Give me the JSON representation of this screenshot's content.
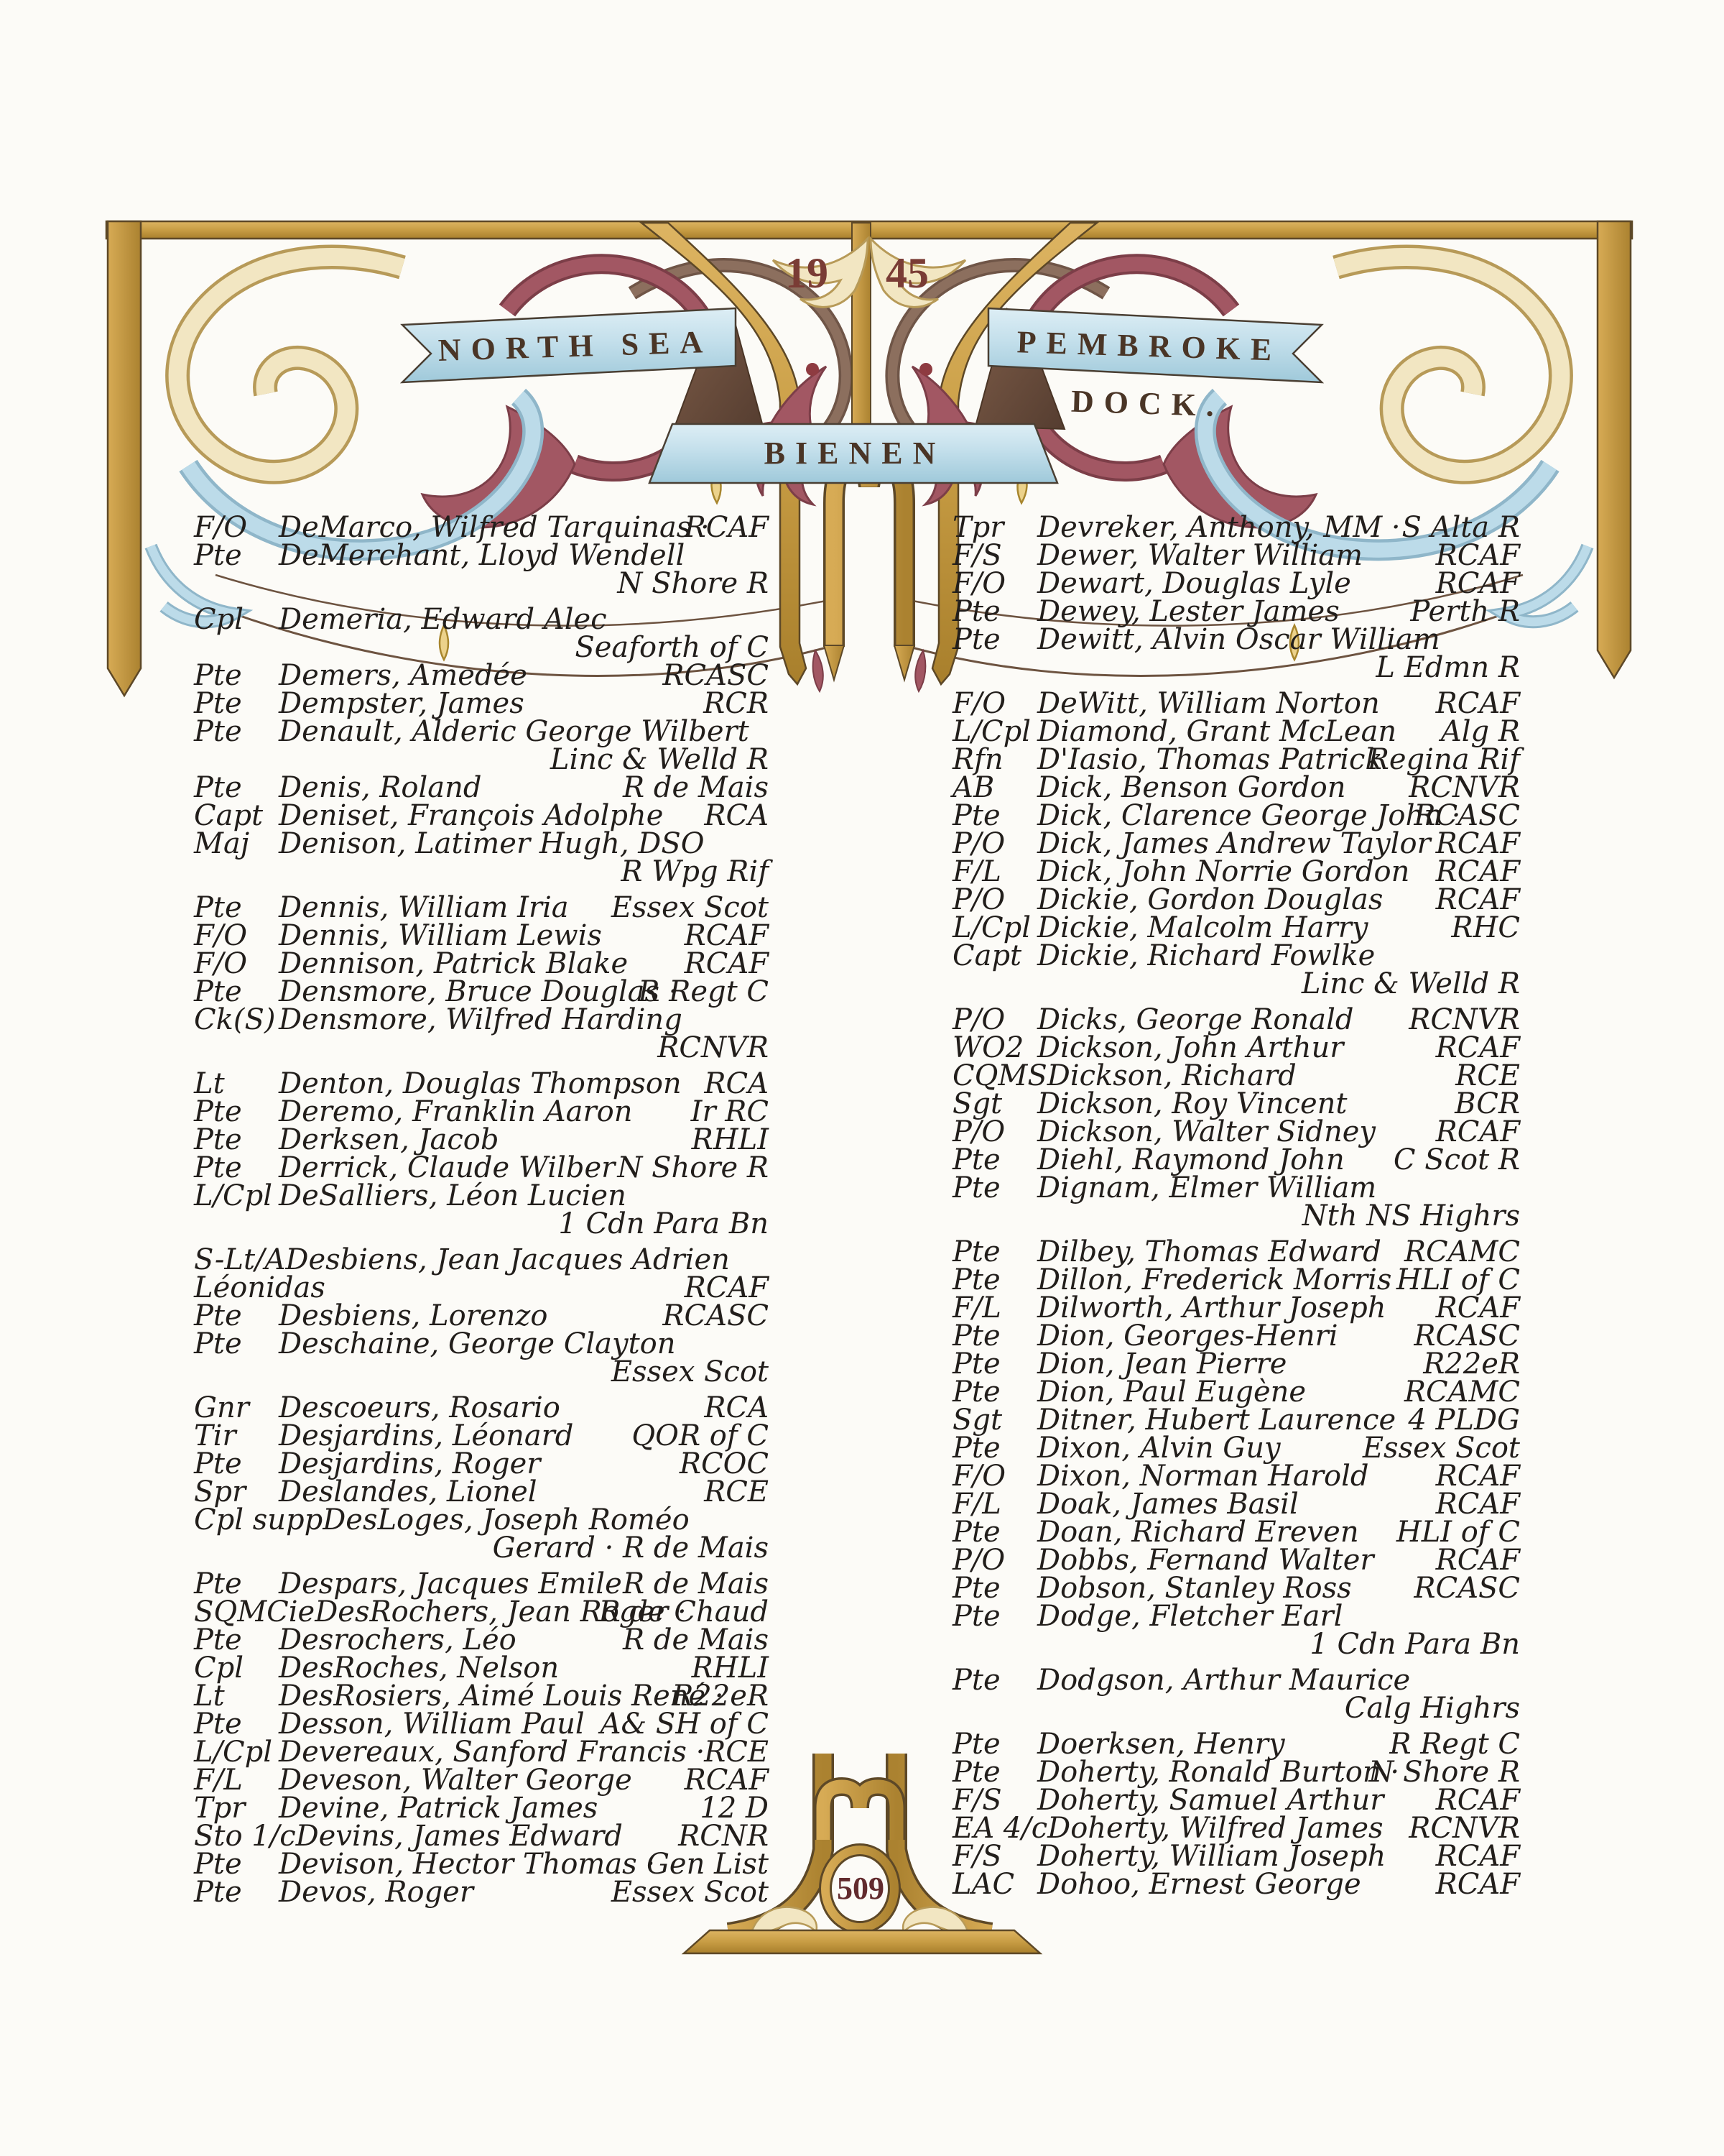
{
  "header": {
    "year_left": "19",
    "year_right": "45",
    "banner_left": "NORTH SEA",
    "banner_right": "PEMBROKE DOCK.",
    "banner_center": "BIENEN"
  },
  "footer": {
    "page_number": "509"
  },
  "colors": {
    "paper": "#fcfbf7",
    "gold": "#c89d44",
    "gold_dark": "#a87f2c",
    "outline_brown": "#5d4827",
    "banner_blue": "#c3dfeb",
    "ribbon_fold_brown": "#6b4c3c",
    "foliage_red": "#a25763",
    "foliage_red_dark": "#7c3e48",
    "foliage_blue": "#bcdbe9",
    "foliage_cream": "#f2e6c2",
    "foliage_brown": "#8c6f5e",
    "ink": "#221e1b",
    "numeral_red": "#7a3c35",
    "page_number_red": "#622b2e",
    "banner_text_brown": "#4a3526"
  },
  "register": {
    "left_column": {
      "rows": [
        {
          "rank": "F/O",
          "name": "DeMarco, Wilfred Tarquinas ·",
          "reg": "RCAF"
        },
        {
          "rank": "Pte",
          "name": "DeMerchant, Lloyd Wendell",
          "reg": ""
        },
        {
          "cont": true,
          "reg": "N Shore R"
        },
        {
          "rank": "Cpl",
          "name": "Demeria, Edward Alec",
          "reg": "",
          "gap": true
        },
        {
          "cont": true,
          "reg": "Seaforth of C"
        },
        {
          "rank": "Pte",
          "name": "Demers, Amedée",
          "reg": "RCASC"
        },
        {
          "rank": "Pte",
          "name": "Dempster, James",
          "reg": "RCR"
        },
        {
          "rank": "Pte",
          "name": "Denault, Alderic George Wilbert",
          "reg": ""
        },
        {
          "cont": true,
          "reg": "Linc & Welld R"
        },
        {
          "rank": "Pte",
          "name": "Denis, Roland",
          "reg": "R de Mais"
        },
        {
          "rank": "Capt",
          "name": "Deniset, François Adolphe",
          "reg": "RCA"
        },
        {
          "rank": "Maj",
          "name": "Denison, Latimer Hugh, DSO",
          "reg": ""
        },
        {
          "cont": true,
          "reg": "R Wpg Rif"
        },
        {
          "rank": "Pte",
          "name": "Dennis, William Iria",
          "reg": "Essex Scot",
          "gap": true
        },
        {
          "rank": "F/O",
          "name": "Dennis, William Lewis",
          "reg": "RCAF"
        },
        {
          "rank": "F/O",
          "name": "Dennison, Patrick Blake",
          "reg": "RCAF"
        },
        {
          "rank": "Pte",
          "name": "Densmore, Bruce Douglas ·",
          "reg": "R Regt C"
        },
        {
          "rank": "Ck(S)",
          "name": "Densmore, Wilfred Harding",
          "reg": ""
        },
        {
          "cont": true,
          "reg": "RCNVR"
        },
        {
          "rank": "Lt",
          "name": "Denton, Douglas Thompson",
          "reg": "RCA",
          "gap": true
        },
        {
          "rank": "Pte",
          "name": "Deremo, Franklin Aaron",
          "reg": "Ir RC"
        },
        {
          "rank": "Pte",
          "name": "Derksen, Jacob",
          "reg": "RHLI"
        },
        {
          "rank": "Pte",
          "name": "Derrick, Claude Wilber",
          "reg": "N Shore R"
        },
        {
          "rank": "L/Cpl",
          "name": "DeSalliers, Léon Lucien",
          "reg": ""
        },
        {
          "cont": true,
          "reg": "1 Cdn Para Bn"
        },
        {
          "rank": "S-Lt/A",
          "name": "Desbiens, Jean Jacques Adrien",
          "reg": "",
          "gap": true
        },
        {
          "cont": true,
          "pre": "Léonidas",
          "reg": "RCAF"
        },
        {
          "rank": "Pte",
          "name": "Desbiens, Lorenzo",
          "reg": "RCASC"
        },
        {
          "rank": "Pte",
          "name": "Deschaine, George Clayton",
          "reg": ""
        },
        {
          "cont": true,
          "reg": "Essex Scot"
        },
        {
          "rank": "Gnr",
          "name": "Descoeurs, Rosario",
          "reg": "RCA",
          "gap": true
        },
        {
          "rank": "Tir",
          "name": "Desjardins, Léonard",
          "reg": "QOR of C"
        },
        {
          "rank": "Pte",
          "name": "Desjardins, Roger",
          "reg": "RCOC"
        },
        {
          "rank": "Spr",
          "name": "Deslandes, Lionel",
          "reg": "RCE"
        },
        {
          "rank": "Cpl supp",
          "name": "DesLoges, Joseph Roméo",
          "reg": ""
        },
        {
          "cont": true,
          "reg": "Gerard · R de Mais"
        },
        {
          "rank": "Pte",
          "name": "Despars, Jacques Emile",
          "reg": "R de Mais",
          "gap": true
        },
        {
          "rank": "SQMCie",
          "name": "DesRochers, Jean Roger ·",
          "reg": "R de Chaud"
        },
        {
          "rank": "Pte",
          "name": "Desrochers, Léo",
          "reg": "R de Mais"
        },
        {
          "rank": "Cpl",
          "name": "DesRoches, Nelson",
          "reg": "RHLI"
        },
        {
          "rank": "Lt",
          "name": "DesRosiers, Aimé Louis René ·",
          "reg": "R22eR"
        },
        {
          "rank": "Pte",
          "name": "Desson, William Paul",
          "reg": "A& SH of C"
        },
        {
          "rank": "L/Cpl",
          "name": "Devereaux, Sanford Francis ·",
          "reg": "RCE"
        },
        {
          "rank": "F/L",
          "name": "Deveson, Walter George",
          "reg": "RCAF"
        },
        {
          "rank": "Tpr",
          "name": "Devine, Patrick James",
          "reg": "12 D"
        },
        {
          "rank": "Sto 1/c",
          "name": "Devins, James Edward",
          "reg": "RCNR"
        },
        {
          "rank": "Pte",
          "name": "Devison, Hector Thomas ·",
          "reg": "Gen List"
        },
        {
          "rank": "Pte",
          "name": "Devos, Roger",
          "reg": "Essex Scot"
        }
      ]
    },
    "right_column": {
      "rows": [
        {
          "rank": "Tpr",
          "name": "Devreker, Anthony, MM ·",
          "reg": "S Alta R"
        },
        {
          "rank": "F/S",
          "name": "Dewer, Walter William",
          "reg": "RCAF"
        },
        {
          "rank": "F/O",
          "name": "Dewart, Douglas Lyle",
          "reg": "RCAF"
        },
        {
          "rank": "Pte",
          "name": "Dewey, Lester James",
          "reg": "Perth R"
        },
        {
          "rank": "Pte",
          "name": "Dewitt, Alvin Oscar William",
          "reg": ""
        },
        {
          "cont": true,
          "reg": "L Edmn R"
        },
        {
          "rank": "F/O",
          "name": "DeWitt, William Norton",
          "reg": "RCAF",
          "gap": true
        },
        {
          "rank": "L/Cpl",
          "name": "Diamond, Grant McLean",
          "reg": "Alg R"
        },
        {
          "rank": "Rfn",
          "name": "D'Iasio, Thomas Patrick",
          "reg": "Regina Rif"
        },
        {
          "rank": "AB",
          "name": "Dick, Benson Gordon",
          "reg": "RCNVR"
        },
        {
          "rank": "Pte",
          "name": "Dick, Clarence George John ·",
          "reg": "RCASC"
        },
        {
          "rank": "P/O",
          "name": "Dick, James Andrew Taylor",
          "reg": "RCAF"
        },
        {
          "rank": "F/L",
          "name": "Dick, John Norrie Gordon",
          "reg": "RCAF"
        },
        {
          "rank": "P/O",
          "name": "Dickie, Gordon Douglas",
          "reg": "RCAF"
        },
        {
          "rank": "L/Cpl",
          "name": "Dickie, Malcolm Harry",
          "reg": "RHC"
        },
        {
          "rank": "Capt",
          "name": "Dickie, Richard Fowlke",
          "reg": ""
        },
        {
          "cont": true,
          "reg": "Linc & Welld R"
        },
        {
          "rank": "P/O",
          "name": "Dicks, George Ronald",
          "reg": "RCNVR",
          "gap": true
        },
        {
          "rank": "WO2",
          "name": "Dickson, John Arthur",
          "reg": "RCAF"
        },
        {
          "rank": "CQMS",
          "name": "Dickson, Richard",
          "reg": "RCE"
        },
        {
          "rank": "Sgt",
          "name": "Dickson, Roy Vincent",
          "reg": "BCR"
        },
        {
          "rank": "P/O",
          "name": "Dickson, Walter Sidney",
          "reg": "RCAF"
        },
        {
          "rank": "Pte",
          "name": "Diehl, Raymond John",
          "reg": "C Scot R"
        },
        {
          "rank": "Pte",
          "name": "Dignam, Elmer William",
          "reg": ""
        },
        {
          "cont": true,
          "reg": "Nth NS Highrs"
        },
        {
          "rank": "Pte",
          "name": "Dilbey, Thomas Edward",
          "reg": "RCAMC",
          "gap": true
        },
        {
          "rank": "Pte",
          "name": "Dillon, Frederick Morris",
          "reg": "HLI of C"
        },
        {
          "rank": "F/L",
          "name": "Dilworth, Arthur Joseph",
          "reg": "RCAF"
        },
        {
          "rank": "Pte",
          "name": "Dion, Georges-Henri",
          "reg": "RCASC"
        },
        {
          "rank": "Pte",
          "name": "Dion, Jean Pierre",
          "reg": "R22eR"
        },
        {
          "rank": "Pte",
          "name": "Dion, Paul Eugène",
          "reg": "RCAMC"
        },
        {
          "rank": "Sgt",
          "name": "Ditner, Hubert Laurence",
          "reg": "4 PLDG"
        },
        {
          "rank": "Pte",
          "name": "Dixon, Alvin Guy",
          "reg": "Essex Scot"
        },
        {
          "rank": "F/O",
          "name": "Dixon, Norman Harold",
          "reg": "RCAF"
        },
        {
          "rank": "F/L",
          "name": "Doak, James Basil",
          "reg": "RCAF"
        },
        {
          "rank": "Pte",
          "name": "Doan, Richard Ereven",
          "reg": "HLI of C"
        },
        {
          "rank": "P/O",
          "name": "Dobbs, Fernand Walter",
          "reg": "RCAF"
        },
        {
          "rank": "Pte",
          "name": "Dobson, Stanley Ross",
          "reg": "RCASC"
        },
        {
          "rank": "Pte",
          "name": "Dodge, Fletcher Earl",
          "reg": ""
        },
        {
          "cont": true,
          "reg": "1 Cdn Para Bn"
        },
        {
          "rank": "Pte",
          "name": "Dodgson, Arthur Maurice",
          "reg": "",
          "gap": true
        },
        {
          "cont": true,
          "reg": "Calg Highrs"
        },
        {
          "rank": "Pte",
          "name": "Doerksen, Henry",
          "reg": "R Regt C",
          "gap": true
        },
        {
          "rank": "Pte",
          "name": "Doherty, Ronald Burton ·",
          "reg": "N Shore R"
        },
        {
          "rank": "F/S",
          "name": "Doherty, Samuel Arthur",
          "reg": "RCAF"
        },
        {
          "rank": "EA 4/c",
          "name": "Doherty, Wilfred James",
          "reg": "RCNVR"
        },
        {
          "rank": "F/S",
          "name": "Doherty, William Joseph",
          "reg": "RCAF"
        },
        {
          "rank": "LAC",
          "name": "Dohoo, Ernest George",
          "reg": "RCAF"
        }
      ]
    }
  }
}
